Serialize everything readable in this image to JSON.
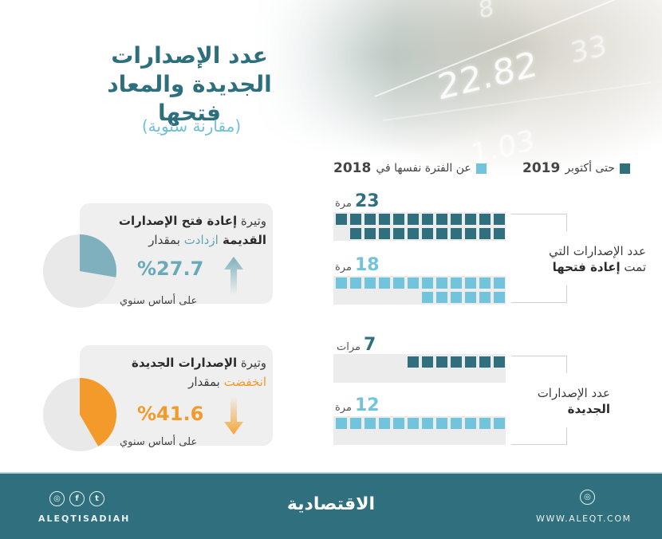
{
  "header": {
    "title_line1": "عدد الإصدارات",
    "title_line2": "الجديدة والمعاد فتحها",
    "subtitle": "(مقارنة سنوية)",
    "background_numbers": [
      "22.82",
      "33",
      "1.03",
      "8"
    ]
  },
  "legend": {
    "current": {
      "text": "حتى أكتوبر",
      "year": "2019",
      "color": "#2f6f7e"
    },
    "previous": {
      "text": "عن الفترة نفسها في",
      "year": "2018",
      "color": "#72c3dc"
    }
  },
  "groups": [
    {
      "label_line1": "عدد الإصدارات التي",
      "label_line2_plain": "تمت ",
      "label_line2_bold": "إعادة فتحها",
      "bars": [
        {
          "value": "23",
          "unit": "مرة",
          "count": 23,
          "color": "#2f6f7e"
        },
        {
          "value": "18",
          "unit": "مرة",
          "count": 18,
          "color": "#72c3dc"
        }
      ]
    },
    {
      "label_line1": "عدد الإصدارات",
      "label_line2_bold": "الجديدة",
      "bars": [
        {
          "value": "7",
          "unit": "مرات",
          "count": 7,
          "color": "#2f6f7e"
        },
        {
          "value": "12",
          "unit": "مرة",
          "count": 12,
          "color": "#72c3dc"
        }
      ]
    }
  ],
  "cards": [
    {
      "line1_plain": "وتيرة ",
      "line1_bold": "إعادة فتح الإصدارات",
      "line2_bold": "القديمة ",
      "line2_colored": "ازدادت",
      "line2_plain": " بمقدار",
      "percent": "%27.7",
      "direction": "up",
      "basis": "على أساس سنوي",
      "color": "#6aa9b8",
      "pie_share": 27.7
    },
    {
      "line1_plain": "وتيرة ",
      "line1_bold": "الإصدارات الجديدة",
      "line2_colored": "انخفضت",
      "line2_plain": " بمقدار",
      "percent": "%41.6",
      "direction": "down",
      "basis": "على أساس سنوي",
      "color": "#f39a2b",
      "pie_share": 41.6
    }
  ],
  "footer": {
    "social_icons": [
      "instagram-icon",
      "facebook-icon",
      "twitter-icon"
    ],
    "social_glyphs": [
      "◎",
      "f",
      "t"
    ],
    "handle": "ALEQTISADIAH",
    "logo": "الاقتصادية",
    "website": "WWW.ALEQT.COM"
  },
  "chart_data": {
    "type": "bar",
    "title": "عدد الإصدارات الجديدة والمعاد فتحها (مقارنة سنوية)",
    "categories": [
      "عدد الإصدارات التي تمت إعادة فتحها",
      "عدد الإصدارات الجديدة"
    ],
    "series": [
      {
        "name": "حتى أكتوبر 2019",
        "values": [
          23,
          7
        ],
        "color": "#2f6f7e"
      },
      {
        "name": "عن الفترة نفسها في 2018",
        "values": [
          18,
          12
        ],
        "color": "#72c3dc"
      }
    ],
    "annotations": [
      {
        "text": "وتيرة إعادة فتح الإصدارات القديمة ازدادت بمقدار 27.7% على أساس سنوي",
        "value": 27.7,
        "direction": "up"
      },
      {
        "text": "وتيرة الإصدارات الجديدة انخفضت بمقدار 41.6% على أساس سنوي",
        "value": -41.6,
        "direction": "down"
      }
    ],
    "units": "مرة",
    "legend_position": "top",
    "grid": false
  }
}
